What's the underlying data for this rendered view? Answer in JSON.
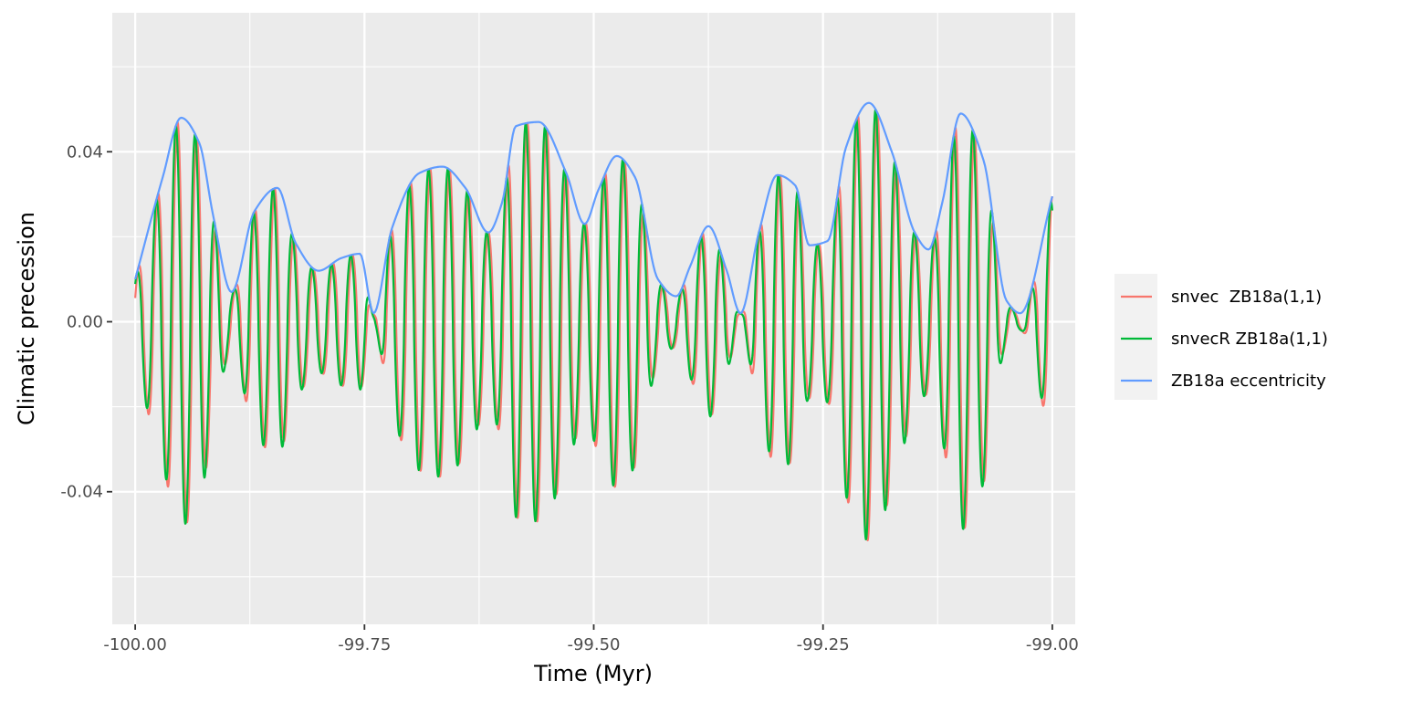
{
  "chart_data": {
    "type": "line",
    "title": "",
    "xlabel": "Time (Myr)",
    "ylabel": "Climatic precession",
    "xlim": [
      -100.025,
      -98.975
    ],
    "ylim": [
      -0.0712,
      0.0727
    ],
    "x_breaks": [
      -100.0,
      -99.75,
      -99.5,
      -99.25,
      -99.0
    ],
    "x_tick_labels": [
      "-100.00",
      "-99.75",
      "-99.50",
      "-99.25",
      "-99.00"
    ],
    "x_minor_breaks": [
      -99.875,
      -99.625,
      -99.375,
      -99.125
    ],
    "y_breaks": [
      -0.04,
      0.0,
      0.04
    ],
    "y_tick_labels": [
      "-0.04",
      "0.00",
      "0.04"
    ],
    "y_minor_breaks": [
      -0.06,
      -0.02,
      0.02,
      0.06
    ],
    "grid": true,
    "legend_position": "right",
    "precession_period_myr": 0.0212,
    "precession_phase_offset_myr": 0.0018,
    "series": [
      {
        "name": "snvec  ZB18a(1,1)",
        "color": "#F8766D",
        "kind": "precession",
        "phase_myr": 0.0018
      },
      {
        "name": "snvecR ZB18a(1,1)",
        "color": "#00BA38",
        "kind": "precession",
        "phase_myr": 0.0
      },
      {
        "name": "ZB18a eccentricity",
        "color": "#619CFF",
        "kind": "envelope",
        "x": [
          -100.0,
          -99.97,
          -99.95,
          -99.93,
          -99.915,
          -99.895,
          -99.87,
          -99.845,
          -99.825,
          -99.8,
          -99.775,
          -99.755,
          -99.74,
          -99.72,
          -99.69,
          -99.665,
          -99.64,
          -99.615,
          -99.6,
          -99.585,
          -99.56,
          -99.53,
          -99.51,
          -99.495,
          -99.475,
          -99.455,
          -99.43,
          -99.41,
          -99.395,
          -99.375,
          -99.355,
          -99.34,
          -99.32,
          -99.3,
          -99.28,
          -99.265,
          -99.245,
          -99.225,
          -99.2,
          -99.175,
          -99.15,
          -99.135,
          -99.12,
          -99.1,
          -99.075,
          -99.05,
          -99.035,
          -99.0
        ],
        "y": [
          0.01,
          0.034,
          0.048,
          0.042,
          0.025,
          0.007,
          0.026,
          0.0315,
          0.0185,
          0.012,
          0.015,
          0.016,
          0.002,
          0.022,
          0.035,
          0.0365,
          0.0315,
          0.021,
          0.028,
          0.046,
          0.047,
          0.035,
          0.023,
          0.031,
          0.039,
          0.034,
          0.01,
          0.006,
          0.013,
          0.0225,
          0.012,
          0.002,
          0.021,
          0.0345,
          0.032,
          0.018,
          0.019,
          0.041,
          0.0515,
          0.04,
          0.021,
          0.017,
          0.028,
          0.049,
          0.038,
          0.005,
          0.002,
          0.0295
        ]
      }
    ]
  }
}
